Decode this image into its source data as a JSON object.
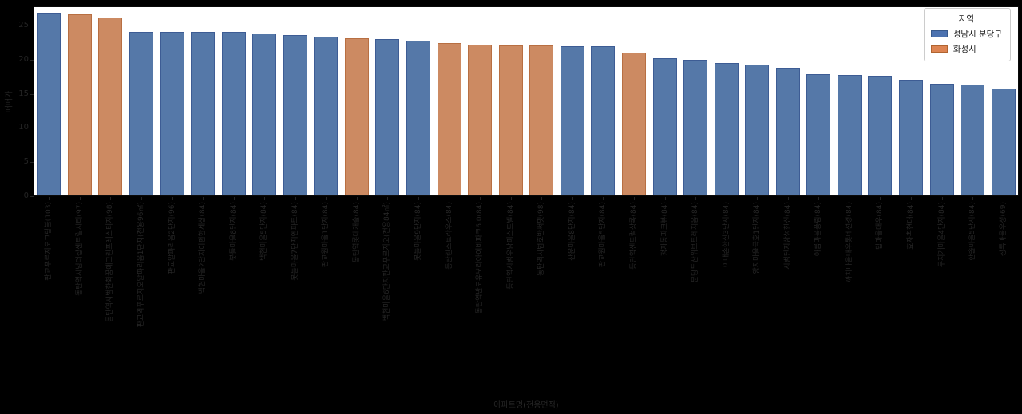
{
  "figure": {
    "background": "#000000",
    "plot_background": "#ffffff",
    "text_color": "#262626"
  },
  "legend": {
    "title": "지역",
    "entries": [
      {
        "label": "성남시 분당구",
        "color": "#4c72b0",
        "edge": "#38598c"
      },
      {
        "label": "화성시",
        "color": "#dd8452",
        "edge": "#b06430"
      }
    ]
  },
  "chart_data": {
    "type": "bar",
    "title": "",
    "xlabel": "아파트명(전용면적)",
    "ylabel": "매매가",
    "ylim": [
      0,
      27.8
    ],
    "yticks": [
      0,
      5,
      10,
      15,
      20,
      25
    ],
    "grid": false,
    "legend_position": "upper right",
    "groups": {
      "bundang": {
        "label": "성남시 분당구",
        "fill": "#5578a8",
        "edge": "#3d5c94"
      },
      "hwaseong": {
        "label": "화성시",
        "fill": "#cc8a62",
        "edge": "#b86f42"
      }
    },
    "bars": [
      {
        "label": "판교푸르지오그랑블(103)",
        "value": 26.8,
        "group": "bundang"
      },
      {
        "label": "동탄역시범더샵센트럴시티(97)",
        "value": 26.5,
        "group": "hwaseong"
      },
      {
        "label": "동탄역시범한화꿈에그린프레스티지(98)",
        "value": 26.1,
        "group": "hwaseong"
      },
      {
        "label": "판교역푸르지오알파리움1단지(전용96㎡)",
        "value": 24.0,
        "group": "bundang"
      },
      {
        "label": "판교알파리움2단지(96)",
        "value": 24.0,
        "group": "bundang"
      },
      {
        "label": "백현마을2단지이편한세상(84)",
        "value": 24.0,
        "group": "bundang"
      },
      {
        "label": "봇들마을8단지(84)",
        "value": 23.9,
        "group": "bundang"
      },
      {
        "label": "백현마을5단지(84)",
        "value": 23.7,
        "group": "bundang"
      },
      {
        "label": "봇들마을7단지엔파트(84)",
        "value": 23.5,
        "group": "bundang"
      },
      {
        "label": "판교원마을1단지(84)",
        "value": 23.2,
        "group": "bundang"
      },
      {
        "label": "동탄역롯데캐슬(84)",
        "value": 23.0,
        "group": "hwaseong"
      },
      {
        "label": "백현마을6단지판교푸르지오(전용84㎡)",
        "value": 22.9,
        "group": "bundang"
      },
      {
        "label": "봇들마을9단지(84)",
        "value": 22.7,
        "group": "bundang"
      },
      {
        "label": "동탄린스트라우스(84)",
        "value": 22.3,
        "group": "hwaseong"
      },
      {
        "label": "동탄역반도유보라아이비파크6.0(84)",
        "value": 22.1,
        "group": "hwaseong"
      },
      {
        "label": "동탄역시범우남퍼스트빌(84)",
        "value": 22.0,
        "group": "hwaseong"
      },
      {
        "label": "동탄역시범호반써밋(98)",
        "value": 22.0,
        "group": "hwaseong"
      },
      {
        "label": "산운마을8단지(84)",
        "value": 21.9,
        "group": "bundang"
      },
      {
        "label": "판교원마을5단지(84)",
        "value": 21.8,
        "group": "bundang"
      },
      {
        "label": "동탄역센트럴상록(84)",
        "value": 20.9,
        "group": "hwaseong"
      },
      {
        "label": "정자동파크뷰(84)",
        "value": 20.1,
        "group": "bundang"
      },
      {
        "label": "분당두산위브트레지움(84)",
        "value": 19.9,
        "group": "bundang"
      },
      {
        "label": "이매촌한신3단지(84)",
        "value": 19.4,
        "group": "bundang"
      },
      {
        "label": "양지마을금호1단지(84)",
        "value": 19.2,
        "group": "bundang"
      },
      {
        "label": "시범단지삼성한신(84)",
        "value": 18.7,
        "group": "bundang"
      },
      {
        "label": "아름마을풍림(84)",
        "value": 17.7,
        "group": "bundang"
      },
      {
        "label": "까치마을대우롯데선경(84)",
        "value": 17.6,
        "group": "bundang"
      },
      {
        "label": "탑마을대우(84)",
        "value": 17.5,
        "group": "bundang"
      },
      {
        "label": "효자촌현대(84)",
        "value": 16.9,
        "group": "bundang"
      },
      {
        "label": "무지개마을4단지(84)",
        "value": 16.4,
        "group": "bundang"
      },
      {
        "label": "한솔마을5단지(84)",
        "value": 16.2,
        "group": "bundang"
      },
      {
        "label": "상록마을우성(69)",
        "value": 15.7,
        "group": "bundang"
      }
    ]
  }
}
